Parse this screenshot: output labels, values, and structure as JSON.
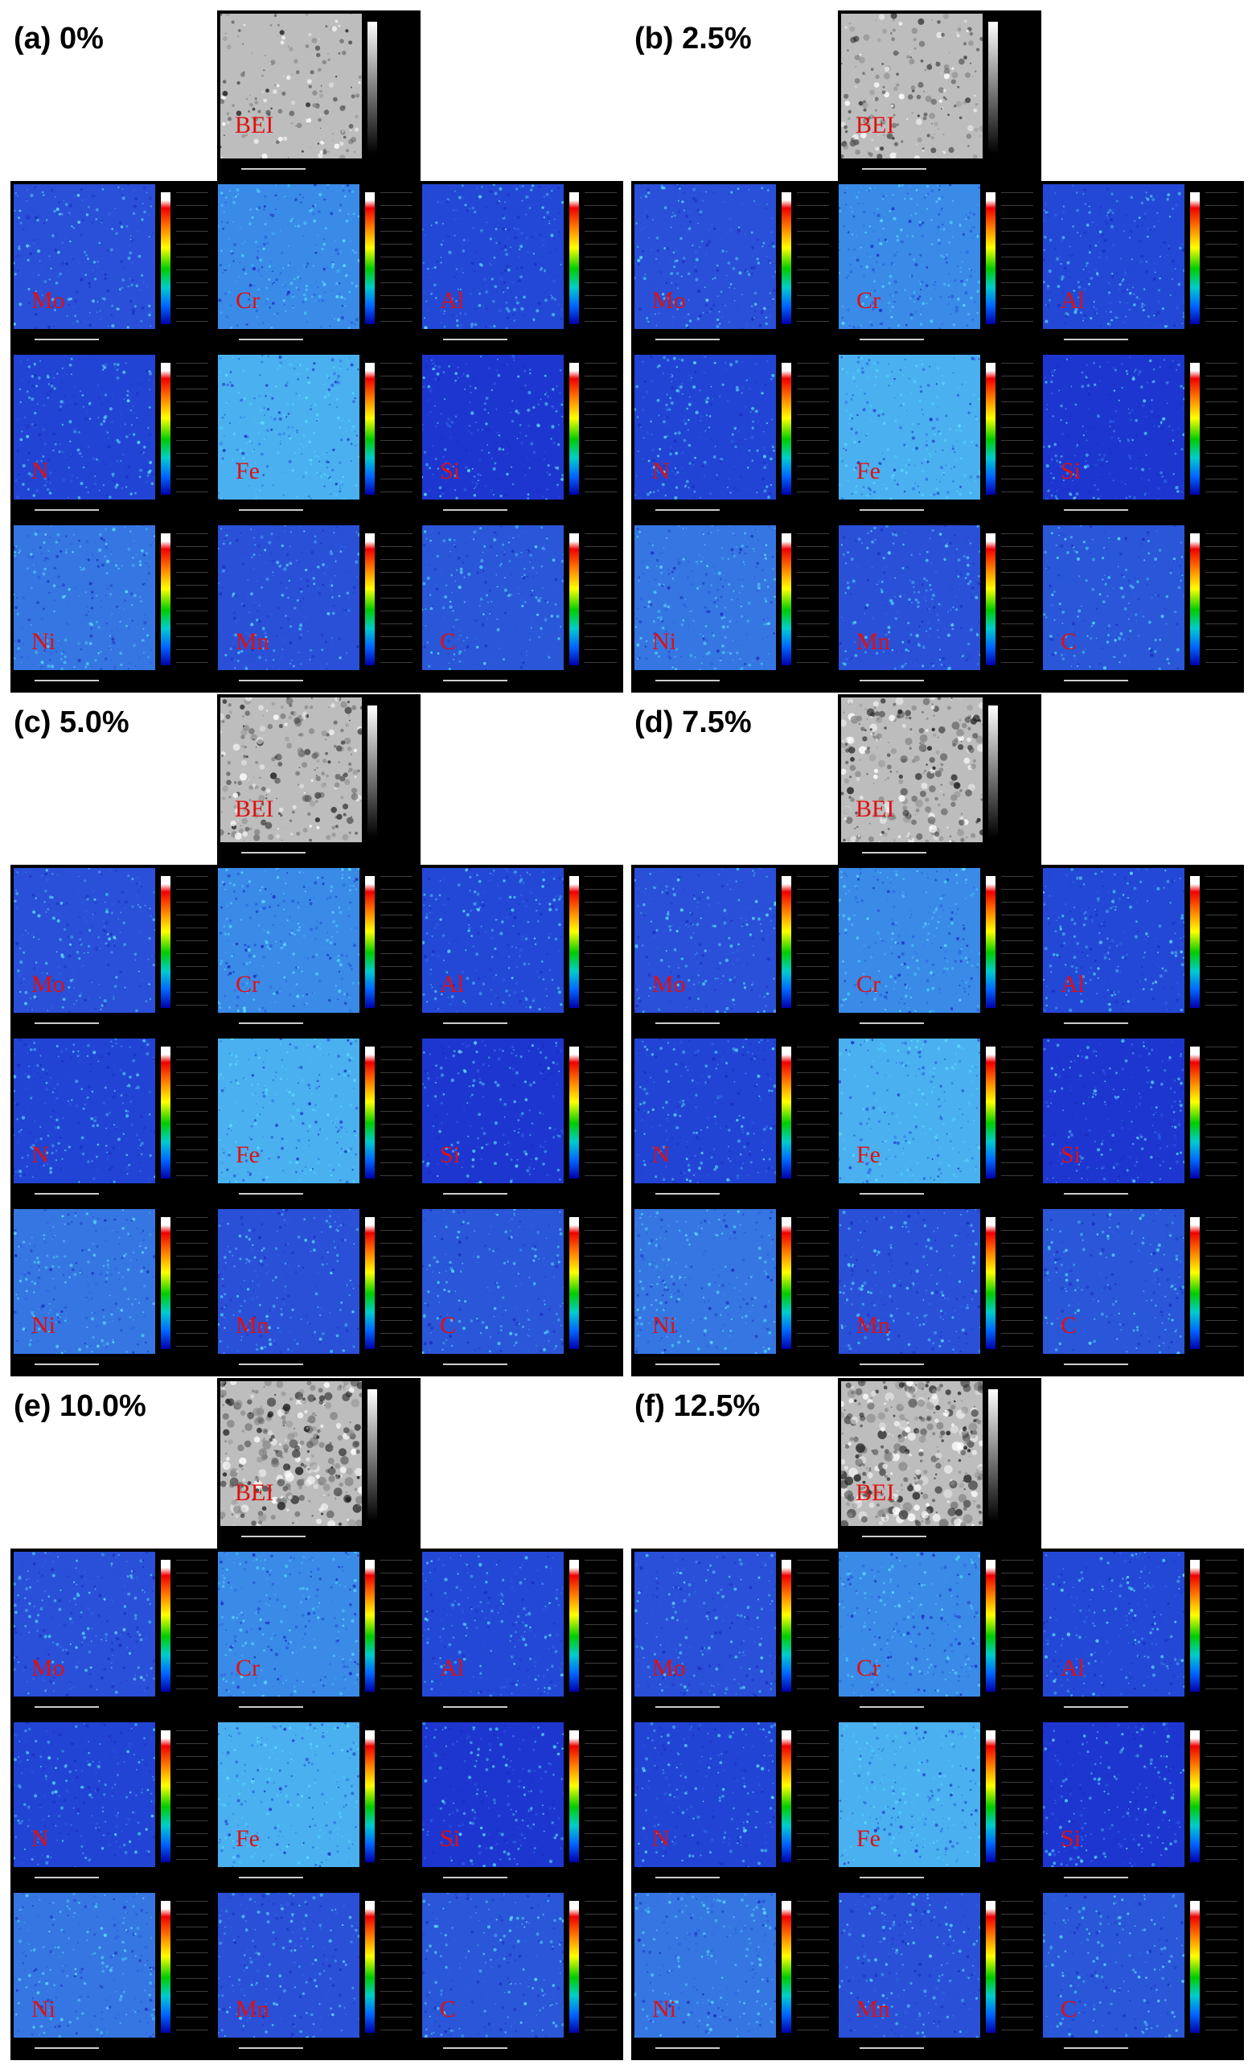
{
  "panels": [
    {
      "label": "(a) 0%",
      "bei_label": "BEI",
      "maps": [
        "Mo",
        "Cr",
        "Al",
        "N",
        "Fe",
        "Si",
        "Ni",
        "Mn",
        "C"
      ]
    },
    {
      "label": "(b) 2.5%",
      "bei_label": "BEI",
      "maps": [
        "Mo",
        "Cr",
        "Al",
        "N",
        "Fe",
        "Si",
        "Ni",
        "Mn",
        "C"
      ]
    },
    {
      "label": "(c) 5.0%",
      "bei_label": "BEI",
      "maps": [
        "Mo",
        "Cr",
        "Al",
        "N",
        "Fe",
        "Si",
        "Ni",
        "Mn",
        "C"
      ]
    },
    {
      "label": "(d) 7.5%",
      "bei_label": "BEI",
      "maps": [
        "Mo",
        "Cr",
        "Al",
        "N",
        "Fe",
        "Si",
        "Ni",
        "Mn",
        "C"
      ]
    },
    {
      "label": "(e) 10.0%",
      "bei_label": "BEI",
      "maps": [
        "Mo",
        "Cr",
        "Al",
        "N",
        "Fe",
        "Si",
        "Ni",
        "Mn",
        "C"
      ]
    },
    {
      "label": "(f) 12.5%",
      "bei_label": "BEI",
      "maps": [
        "Mo",
        "Cr",
        "Al",
        "N",
        "Fe",
        "Si",
        "Ni",
        "Mn",
        "C"
      ]
    }
  ]
}
